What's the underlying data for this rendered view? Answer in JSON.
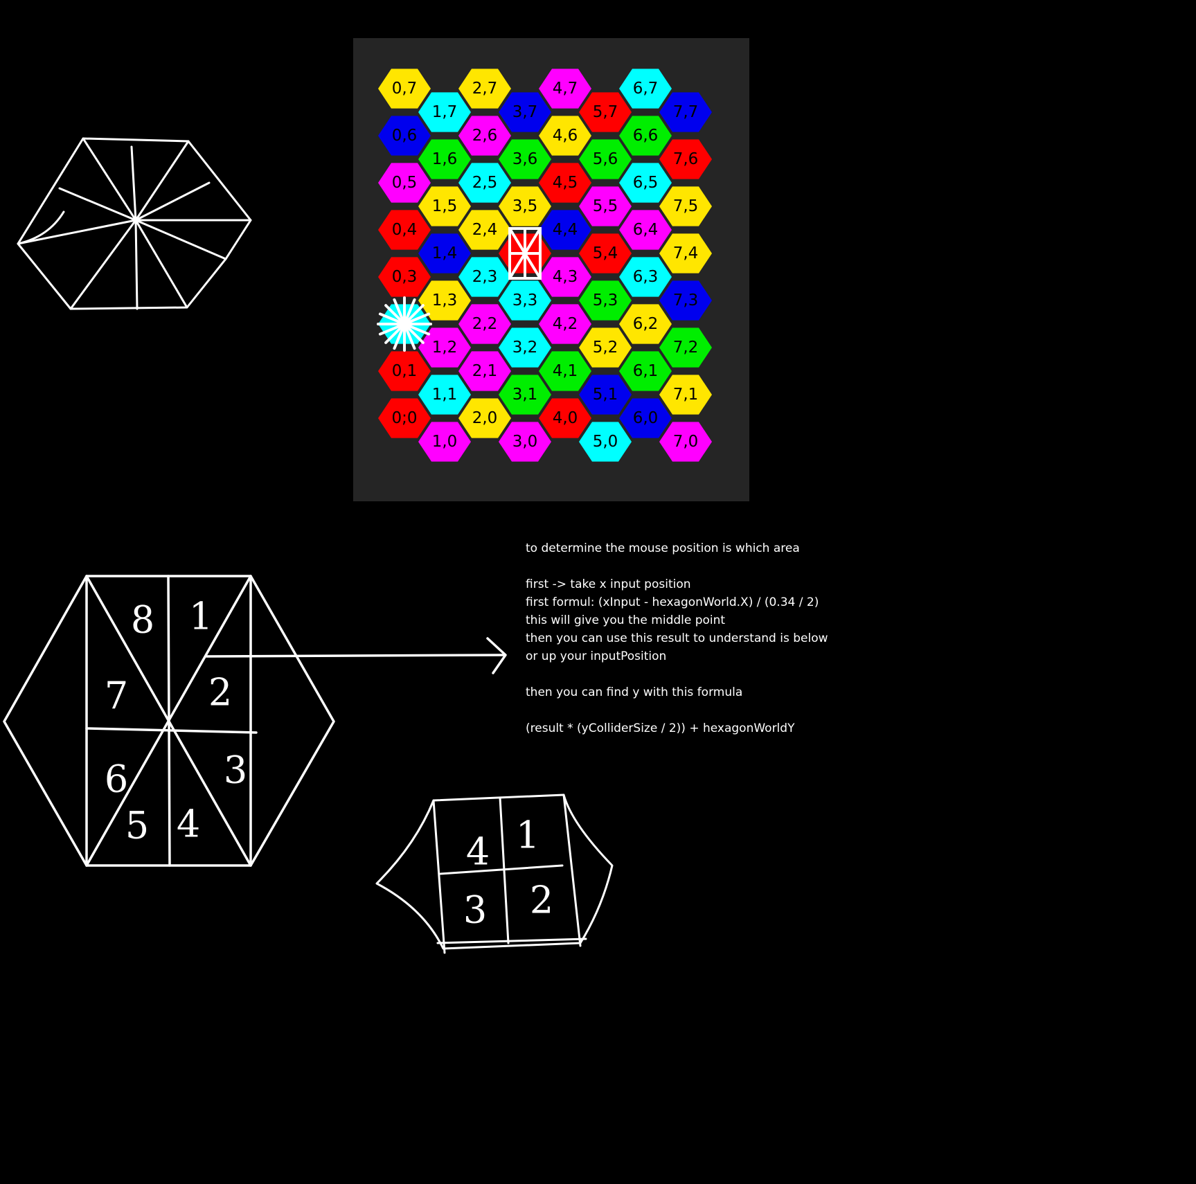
{
  "palette": {
    "yellow": "#ffe600",
    "cyan": "#00ffff",
    "blue": "#0000ee",
    "magenta": "#ff00ff",
    "red": "#ff0000",
    "green": "#00ee00",
    "panel": "#252525",
    "background": "#000000"
  },
  "hex_grid": {
    "columns": 8,
    "rows": 8,
    "cells": [
      {
        "label": "0,7",
        "col": 0,
        "row": 7,
        "color": "yellow"
      },
      {
        "label": "0,6",
        "col": 0,
        "row": 6,
        "color": "blue"
      },
      {
        "label": "0,5",
        "col": 0,
        "row": 5,
        "color": "magenta"
      },
      {
        "label": "0,4",
        "col": 0,
        "row": 4,
        "color": "red"
      },
      {
        "label": "0,3",
        "col": 0,
        "row": 3,
        "color": "red"
      },
      {
        "label": "",
        "col": 0,
        "row": 2,
        "color": "cyan"
      },
      {
        "label": "0,1",
        "col": 0,
        "row": 1,
        "color": "red"
      },
      {
        "label": "0;0",
        "col": 0,
        "row": 0,
        "color": "red"
      },
      {
        "label": "1,7",
        "col": 1,
        "row": 7,
        "color": "cyan"
      },
      {
        "label": "1,6",
        "col": 1,
        "row": 6,
        "color": "green"
      },
      {
        "label": "1,5",
        "col": 1,
        "row": 5,
        "color": "yellow"
      },
      {
        "label": "1,4",
        "col": 1,
        "row": 4,
        "color": "blue"
      },
      {
        "label": "1,3",
        "col": 1,
        "row": 3,
        "color": "yellow"
      },
      {
        "label": "1,2",
        "col": 1,
        "row": 2,
        "color": "magenta"
      },
      {
        "label": "1,1",
        "col": 1,
        "row": 1,
        "color": "cyan"
      },
      {
        "label": "1,0",
        "col": 1,
        "row": 0,
        "color": "magenta"
      },
      {
        "label": "2,7",
        "col": 2,
        "row": 7,
        "color": "yellow"
      },
      {
        "label": "2,6",
        "col": 2,
        "row": 6,
        "color": "magenta"
      },
      {
        "label": "2,5",
        "col": 2,
        "row": 5,
        "color": "cyan"
      },
      {
        "label": "2,4",
        "col": 2,
        "row": 4,
        "color": "yellow"
      },
      {
        "label": "2,3",
        "col": 2,
        "row": 3,
        "color": "cyan"
      },
      {
        "label": "2,2",
        "col": 2,
        "row": 2,
        "color": "magenta"
      },
      {
        "label": "2,1",
        "col": 2,
        "row": 1,
        "color": "magenta"
      },
      {
        "label": "2,0",
        "col": 2,
        "row": 0,
        "color": "yellow"
      },
      {
        "label": "3,7",
        "col": 3,
        "row": 7,
        "color": "blue"
      },
      {
        "label": "3,6",
        "col": 3,
        "row": 6,
        "color": "green"
      },
      {
        "label": "3,5",
        "col": 3,
        "row": 5,
        "color": "yellow"
      },
      {
        "label": "",
        "col": 3,
        "row": 4,
        "color": "red"
      },
      {
        "label": "3,3",
        "col": 3,
        "row": 3,
        "color": "cyan"
      },
      {
        "label": "3,2",
        "col": 3,
        "row": 2,
        "color": "cyan"
      },
      {
        "label": "3,1",
        "col": 3,
        "row": 1,
        "color": "green"
      },
      {
        "label": "3,0",
        "col": 3,
        "row": 0,
        "color": "magenta"
      },
      {
        "label": "4,7",
        "col": 4,
        "row": 7,
        "color": "magenta"
      },
      {
        "label": "4,6",
        "col": 4,
        "row": 6,
        "color": "yellow"
      },
      {
        "label": "4,5",
        "col": 4,
        "row": 5,
        "color": "red"
      },
      {
        "label": "4,4",
        "col": 4,
        "row": 4,
        "color": "blue"
      },
      {
        "label": "4,3",
        "col": 4,
        "row": 3,
        "color": "magenta"
      },
      {
        "label": "4,2",
        "col": 4,
        "row": 2,
        "color": "magenta"
      },
      {
        "label": "4,1",
        "col": 4,
        "row": 1,
        "color": "green"
      },
      {
        "label": "4,0",
        "col": 4,
        "row": 0,
        "color": "red"
      },
      {
        "label": "5,7",
        "col": 5,
        "row": 7,
        "color": "red"
      },
      {
        "label": "5,6",
        "col": 5,
        "row": 6,
        "color": "green"
      },
      {
        "label": "5,5",
        "col": 5,
        "row": 5,
        "color": "magenta"
      },
      {
        "label": "5,4",
        "col": 5,
        "row": 4,
        "color": "red"
      },
      {
        "label": "5,3",
        "col": 5,
        "row": 3,
        "color": "green"
      },
      {
        "label": "5,2",
        "col": 5,
        "row": 2,
        "color": "yellow"
      },
      {
        "label": "5,1",
        "col": 5,
        "row": 1,
        "color": "blue"
      },
      {
        "label": "5,0",
        "col": 5,
        "row": 0,
        "color": "cyan"
      },
      {
        "label": "6,7",
        "col": 6,
        "row": 7,
        "color": "cyan"
      },
      {
        "label": "6,6",
        "col": 6,
        "row": 6,
        "color": "green"
      },
      {
        "label": "6,5",
        "col": 6,
        "row": 5,
        "color": "cyan"
      },
      {
        "label": "6,4",
        "col": 6,
        "row": 4,
        "color": "magenta"
      },
      {
        "label": "6,3",
        "col": 6,
        "row": 3,
        "color": "cyan"
      },
      {
        "label": "6,2",
        "col": 6,
        "row": 2,
        "color": "yellow"
      },
      {
        "label": "6,1",
        "col": 6,
        "row": 1,
        "color": "green"
      },
      {
        "label": "6,0",
        "col": 6,
        "row": 0,
        "color": "blue"
      },
      {
        "label": "7,7",
        "col": 7,
        "row": 7,
        "color": "blue"
      },
      {
        "label": "7,6",
        "col": 7,
        "row": 6,
        "color": "red"
      },
      {
        "label": "7,5",
        "col": 7,
        "row": 5,
        "color": "yellow"
      },
      {
        "label": "7,4",
        "col": 7,
        "row": 4,
        "color": "yellow"
      },
      {
        "label": "7,3",
        "col": 7,
        "row": 3,
        "color": "blue"
      },
      {
        "label": "7,2",
        "col": 7,
        "row": 2,
        "color": "green"
      },
      {
        "label": "7,1",
        "col": 7,
        "row": 1,
        "color": "yellow"
      },
      {
        "label": "7,0",
        "col": 7,
        "row": 0,
        "color": "magenta"
      }
    ]
  },
  "notes": {
    "lines": [
      "to determine the mouse position is which area",
      "",
      "first -> take x input position",
      "first formul: (xInput - hexagonWorld.X) / (0.34 / 2)",
      "this will give you the middle point",
      "then you can use this result to understand is below",
      "or up your inputPosition",
      "",
      "then you can find y with this formula",
      "",
      "(result * (yColliderSize / 2)) + hexagonWorldY"
    ]
  },
  "eight_region_hex": {
    "labels": [
      "8",
      "1",
      "7",
      "2",
      "6",
      "3",
      "5",
      "4"
    ]
  },
  "four_region_hex": {
    "labels": [
      "4",
      "1",
      "3",
      "2"
    ]
  }
}
